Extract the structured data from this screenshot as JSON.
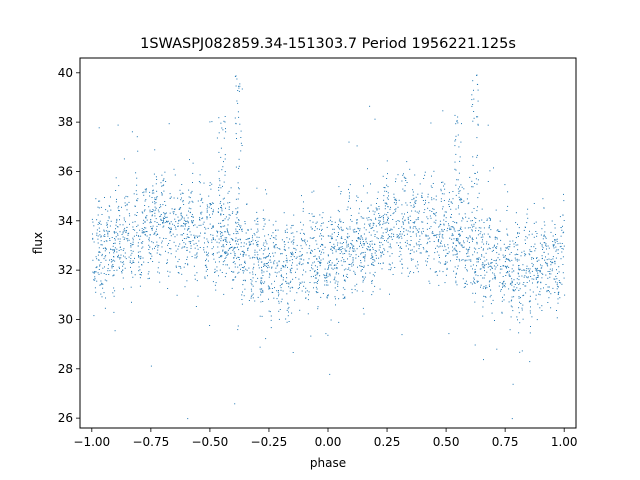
{
  "chart_data": {
    "type": "scatter",
    "title": "1SWASPJ082859.34-151303.7 Period 1956221.125s",
    "xlabel": "phase",
    "ylabel": "flux",
    "xlim": [
      -1.05,
      1.05
    ],
    "ylim": [
      25.6,
      40.6
    ],
    "x_ticks": [
      -1.0,
      -0.75,
      -0.5,
      -0.25,
      0.0,
      0.25,
      0.5,
      0.75,
      1.0
    ],
    "x_tick_labels": [
      "−1.00",
      "−0.75",
      "−0.50",
      "−0.25",
      "0.00",
      "0.25",
      "0.50",
      "0.75",
      "1.00"
    ],
    "y_ticks": [
      26,
      28,
      30,
      32,
      34,
      36,
      38,
      40
    ],
    "y_tick_labels": [
      "26",
      "28",
      "30",
      "32",
      "34",
      "36",
      "38",
      "40"
    ],
    "grid": false,
    "legend": "none",
    "point_color": "#1f77b4",
    "phase_range": [
      -1.0,
      1.0
    ],
    "flux_range": [
      26.0,
      40.0
    ],
    "mean_flux_profile": [
      {
        "phase": -1.0,
        "flux": 32.6
      },
      {
        "phase": -0.9,
        "flux": 33.0
      },
      {
        "phase": -0.8,
        "flux": 33.6
      },
      {
        "phase": -0.7,
        "flux": 33.9
      },
      {
        "phase": -0.6,
        "flux": 33.8
      },
      {
        "phase": -0.5,
        "flux": 33.4
      },
      {
        "phase": -0.4,
        "flux": 33.0
      },
      {
        "phase": -0.3,
        "flux": 32.4
      },
      {
        "phase": -0.2,
        "flux": 32.0
      },
      {
        "phase": -0.1,
        "flux": 32.4
      },
      {
        "phase": 0.0,
        "flux": 32.6
      },
      {
        "phase": 0.1,
        "flux": 33.0
      },
      {
        "phase": 0.2,
        "flux": 33.6
      },
      {
        "phase": 0.3,
        "flux": 33.9
      },
      {
        "phase": 0.4,
        "flux": 33.8
      },
      {
        "phase": 0.5,
        "flux": 33.4
      },
      {
        "phase": 0.6,
        "flux": 33.0
      },
      {
        "phase": 0.7,
        "flux": 32.4
      },
      {
        "phase": 0.8,
        "flux": 32.0
      },
      {
        "phase": 0.9,
        "flux": 32.4
      },
      {
        "phase": 1.0,
        "flux": 32.6
      }
    ],
    "scatter_spread": 1.3,
    "flare_peaks": [
      {
        "phase": -0.38,
        "flux": 40.0
      },
      {
        "phase": 0.62,
        "flux": 40.0
      },
      {
        "phase": -0.45,
        "flux": 38.3
      },
      {
        "phase": 0.55,
        "flux": 38.3
      }
    ]
  }
}
